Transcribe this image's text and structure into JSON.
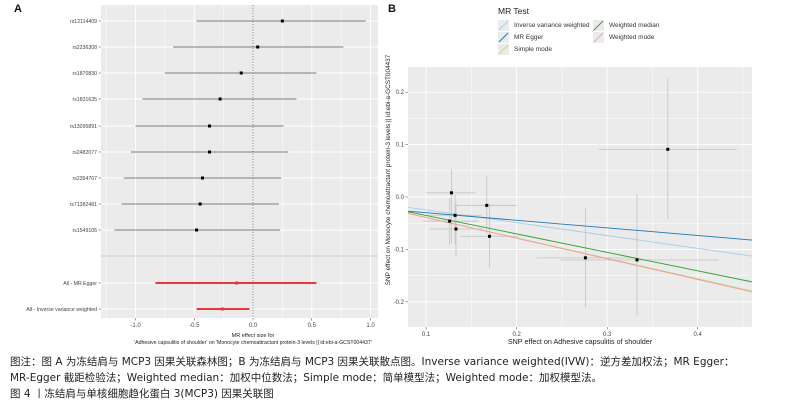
{
  "panels": {
    "a_label": "A",
    "b_label": "B"
  },
  "chart_data": [
    {
      "type": "forest",
      "panel": "A",
      "categories": [
        "rs12114409",
        "rs2236308",
        "rs1870830",
        "rs1831635",
        "rs13095891",
        "rs2482077",
        "rs2354767",
        "rs71382481",
        "rs1549105",
        "All - MR Egger",
        "All - Inverse variance weighted"
      ],
      "estimates": [
        0.25,
        0.04,
        -0.1,
        -0.28,
        -0.37,
        -0.37,
        -0.43,
        -0.45,
        -0.48,
        -0.14,
        -0.26
      ],
      "ci_low": [
        -0.48,
        -0.68,
        -0.75,
        -0.94,
        -1.0,
        -1.04,
        -1.1,
        -1.12,
        -1.18,
        -0.83,
        -0.48
      ],
      "ci_high": [
        0.96,
        0.77,
        0.54,
        0.37,
        0.26,
        0.3,
        0.24,
        0.22,
        0.23,
        0.54,
        -0.03
      ],
      "summary_rows": [
        "All - MR Egger",
        "All - Inverse variance weighted"
      ],
      "summary_color": "#e8363a",
      "snp_color": "#7f7f7f",
      "xlabel_line1": "MR effect size for",
      "xlabel_line2": "'Adhesive capsulitis of shoulder' on 'Monocyte chemoattractant protein-3 levels || id:ebi-a-GCST004437'",
      "xlim": [
        -1.28,
        1.05
      ],
      "xticks": [
        -1.0,
        -0.5,
        0.0,
        0.5,
        1.0
      ],
      "xtick_labels": [
        "-1.0",
        "-0.5",
        "0.0",
        "0.5",
        "1.0"
      ],
      "reference_line": 0,
      "grid": true
    },
    {
      "type": "scatter",
      "panel": "B",
      "xlabel": "SNP effect on Adhesive capsulitis of shoulder",
      "ylabel": "SNP effect on Monocyte chemoattractant protein-3 levels || id:ebi-a-GCST004437",
      "xlim": [
        0.08,
        0.46
      ],
      "ylim": [
        -0.248,
        0.248
      ],
      "xticks": [
        0.1,
        0.2,
        0.3,
        0.4
      ],
      "xtick_labels": [
        "0.1",
        "0.2",
        "0.3",
        "0.4"
      ],
      "yticks": [
        0.2,
        0.1,
        0.0,
        -0.1,
        -0.2
      ],
      "ytick_labels": [
        "0.2",
        "0.1",
        "0.0",
        "-0.1",
        "-0.2"
      ],
      "points": [
        {
          "x": 0.128,
          "y": 0.008,
          "x_lo": 0.1,
          "x_hi": 0.155,
          "y_lo": -0.088,
          "y_hi": 0.053
        },
        {
          "x": 0.132,
          "y": -0.035,
          "x_lo": 0.1,
          "x_hi": 0.161,
          "y_lo": -0.09,
          "y_hi": 0.005
        },
        {
          "x": 0.126,
          "y": -0.046,
          "x_lo": 0.097,
          "x_hi": 0.158,
          "y_lo": -0.092,
          "y_hi": -0.002
        },
        {
          "x": 0.133,
          "y": -0.061,
          "x_lo": 0.104,
          "x_hi": 0.163,
          "y_lo": -0.112,
          "y_hi": -0.01
        },
        {
          "x": 0.167,
          "y": -0.016,
          "x_lo": 0.132,
          "x_hi": 0.2,
          "y_lo": -0.07,
          "y_hi": 0.039
        },
        {
          "x": 0.17,
          "y": -0.075,
          "x_lo": 0.138,
          "x_hi": 0.202,
          "y_lo": -0.134,
          "y_hi": -0.013
        },
        {
          "x": 0.276,
          "y": -0.116,
          "x_lo": 0.222,
          "x_hi": 0.331,
          "y_lo": -0.21,
          "y_hi": -0.02
        },
        {
          "x": 0.333,
          "y": -0.12,
          "x_lo": 0.248,
          "x_hi": 0.423,
          "y_lo": -0.227,
          "y_hi": 0.005
        },
        {
          "x": 0.367,
          "y": 0.091,
          "x_lo": 0.291,
          "x_hi": 0.443,
          "y_lo": -0.042,
          "y_hi": 0.225
        }
      ],
      "lines": [
        {
          "name": "Inverse variance weighted",
          "slope": -0.245,
          "intercept": 0.0,
          "color": "#a6cee3"
        },
        {
          "name": "MR Egger",
          "slope": -0.145,
          "intercept": -0.0154,
          "color": "#1f78b4"
        },
        {
          "name": "Simple mode",
          "slope": -0.39,
          "intercept": 0.0,
          "color": "#b2df8a"
        },
        {
          "name": "Weighted median",
          "slope": -0.352,
          "intercept": 0.0,
          "color": "#33a02c"
        },
        {
          "name": "Weighted mode",
          "slope": -0.393,
          "intercept": 0.0,
          "color": "#fb9a99"
        }
      ],
      "legend_title": "MR Test",
      "legend_position": "top",
      "grid": true
    }
  ],
  "caption": {
    "line1": "图注：图 A 为冻结肩与 MCP3 因果关联森林图；B 为冻结肩与 MCP3 因果关联散点图。Inverse variance weighted(IVW)：逆方差加权法；MR Egger：",
    "line2": "MR-Egger 截距检验法；Weighted median：加权中位数法；Simple mode：简单模型法；Weighted mode：加权模型法。",
    "figure_title": "图 4 丨冻结肩与单核细胞趋化蛋白 3(MCP3) 因果关联图"
  }
}
